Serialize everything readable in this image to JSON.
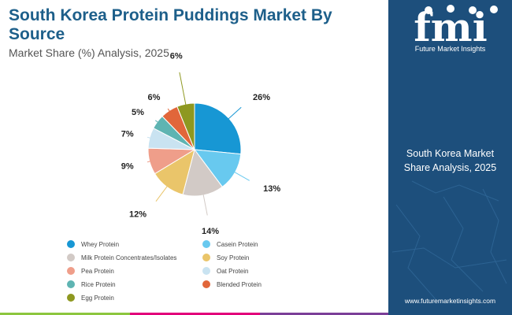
{
  "header": {
    "title": "South Korea Protein Puddings Market By Source",
    "subtitle": "Market Share (%) Analysis, 2025"
  },
  "chart_data": {
    "type": "pie",
    "categories": [
      "Whey Protein",
      "Casein Protein",
      "Milk Protein Concentrates/Isolates",
      "Soy Protein",
      "Pea Protein",
      "Oat Protein",
      "Rice Protein",
      "Blended Protein",
      "Egg Protein"
    ],
    "values": [
      26,
      13,
      14,
      12,
      9,
      7,
      5,
      6,
      6
    ],
    "labels": [
      "26%",
      "13%",
      "14%",
      "12%",
      "9%",
      "7%",
      "5%",
      "6%",
      "6%"
    ],
    "colors": [
      "#1797d4",
      "#68c9ef",
      "#d2cac6",
      "#eac56a",
      "#ef9e8a",
      "#c9e3f1",
      "#5eb4b2",
      "#e1663a",
      "#8e9820"
    ],
    "legend_position": "bottom"
  },
  "sidebar": {
    "logo_text": "fmi",
    "brand_name": "Future Market Insights",
    "panel_title": "South Korea Market Share Analysis, 2025",
    "website": "www.futuremarketinsights.com"
  },
  "accent_colors": [
    "#1d5f8a",
    "#1d4f7c",
    "#8cc63f",
    "#e2007a",
    "#7b3f98"
  ]
}
